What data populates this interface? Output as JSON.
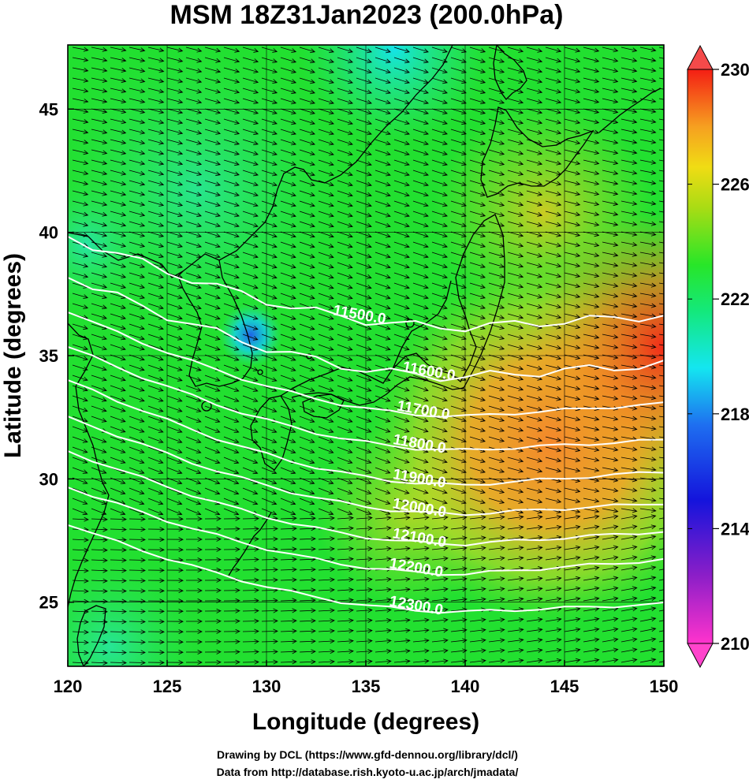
{
  "title": "MSM 18Z31Jan2023 (200.0hPa)",
  "axes": {
    "x_label": "Longitude (degrees)",
    "y_label": "Latitude  (degrees)",
    "x_range": [
      120,
      150
    ],
    "y_range": [
      22.4,
      47.6
    ],
    "x_ticks": [
      "120",
      "125",
      "130",
      "135",
      "140",
      "145",
      "150"
    ],
    "y_ticks": [
      "25",
      "30",
      "35",
      "40",
      "45"
    ]
  },
  "colorbar": {
    "range": [
      210,
      230
    ],
    "labels": [
      "230",
      "226",
      "222",
      "218",
      "214",
      "210"
    ],
    "colormap": "magenta-blue-cyan-green-yellow-red"
  },
  "contours": {
    "labels": [
      "11500.0",
      "11600.0",
      "11700.0",
      "11800.0",
      "11900.0",
      "12000.0",
      "12100.0",
      "12200.0",
      "12300.0"
    ]
  },
  "credits": {
    "line1": "Drawing by DCL (https://www.gfd-dennou.org/library/dcl/)",
    "line2": "Data from http://database.rish.kyoto-u.ac.jp/arch/jmadata/"
  },
  "colors": {
    "field_green": "#22e030",
    "field_orange": "#f49b22",
    "field_red": "#f43a1c",
    "contour": "#ffffff",
    "vector": "#000000",
    "coast": "#000000"
  }
}
